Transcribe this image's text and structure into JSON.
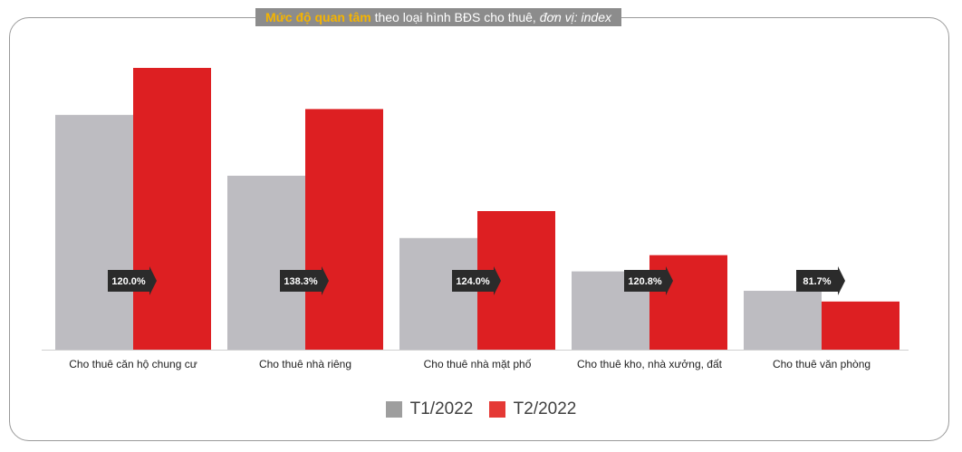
{
  "title": {
    "highlight": "Mức độ quan tâm",
    "main": " theo loại hình BĐS cho thuê, ",
    "unit": "đơn vị: index"
  },
  "chart_data": {
    "type": "bar",
    "categories": [
      "Cho thuê căn hộ chung cư",
      "Cho thuê nhà riêng",
      "Cho thuê nhà mặt phố",
      "Cho thuê kho, nhà xưởng, đất",
      "Cho thuê văn phòng"
    ],
    "series": [
      {
        "name": "T1/2022",
        "color": "#bdbcc1",
        "values": [
          81,
          60,
          38.5,
          27,
          20.3
        ]
      },
      {
        "name": "T2/2022",
        "color": "#dd1f22",
        "values": [
          97.2,
          83,
          47.8,
          32.6,
          16.6
        ]
      }
    ],
    "change_labels": [
      "120.0%",
      "138.3%",
      "124.0%",
      "120.8%",
      "81.7%"
    ],
    "ylim": [
      0,
      100
    ],
    "grid": false,
    "legend": "bottom-center"
  },
  "colors": {
    "frame": "#9a9a9a",
    "title_bg": "#8c8c8c",
    "title_highlight": "#f5b400",
    "arrow": "#2b2b2b",
    "legend_t1": "#9e9e9e",
    "legend_t2": "#e53935"
  }
}
